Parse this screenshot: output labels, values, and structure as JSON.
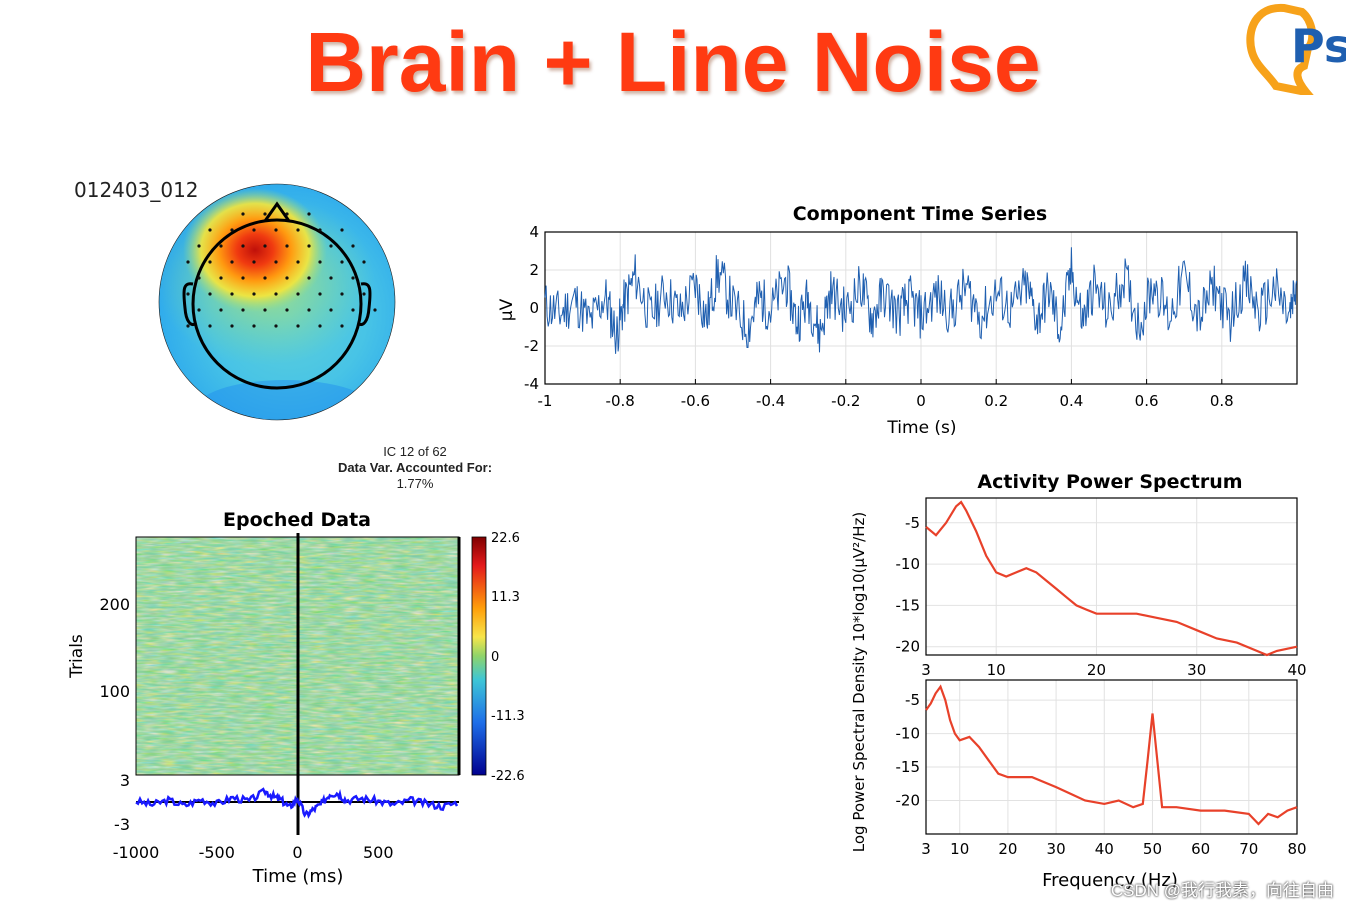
{
  "slide": {
    "title": "Brain + Line Noise",
    "component_id": "012403_012",
    "ic_info": [
      "IC 12 of 62",
      "Data Var. Accounted For:",
      "1.77%"
    ],
    "watermark": "CSDN @我行我素，向往自由"
  },
  "colors": {
    "title": "#ff3a12",
    "trace": "#1f5fb0",
    "spectrum": "#e8412a",
    "erp": "#1a1aff"
  },
  "chart_data": [
    {
      "type": "heatmap",
      "name": "scalp-map",
      "colormap": "jet",
      "hotspot": "front-left",
      "electrodes": 62
    },
    {
      "type": "line",
      "title": "Component Time Series",
      "xlabel": "Time (s)",
      "ylabel": "μV",
      "xlim": [
        -1,
        1
      ],
      "ylim": [
        -4,
        4
      ],
      "xticks": [
        -1,
        -0.8,
        -0.6,
        -0.4,
        -0.2,
        0,
        0.2,
        0.4,
        0.6,
        0.8
      ],
      "yticks": [
        4,
        2,
        0,
        -2,
        -4
      ],
      "grid": true,
      "points": [
        [
          -1.0,
          0.3
        ],
        [
          -0.96,
          -0.6
        ],
        [
          -0.92,
          0.8
        ],
        [
          -0.88,
          -1.4
        ],
        [
          -0.84,
          1.2
        ],
        [
          -0.81,
          -2.6
        ],
        [
          -0.79,
          0.4
        ],
        [
          -0.76,
          3.1
        ],
        [
          -0.72,
          -0.8
        ],
        [
          -0.68,
          1.6
        ],
        [
          -0.64,
          -0.5
        ],
        [
          -0.6,
          2.3
        ],
        [
          -0.57,
          -1.1
        ],
        [
          -0.54,
          3.5
        ],
        [
          -0.5,
          0.2
        ],
        [
          -0.46,
          -1.9
        ],
        [
          -0.43,
          1.1
        ],
        [
          -0.4,
          -0.3
        ],
        [
          -0.36,
          2.6
        ],
        [
          -0.33,
          -1.4
        ],
        [
          -0.3,
          1.0
        ],
        [
          -0.27,
          -2.5
        ],
        [
          -0.24,
          1.6
        ],
        [
          -0.2,
          -0.4
        ],
        [
          -0.16,
          2.2
        ],
        [
          -0.13,
          -1.0
        ],
        [
          -0.1,
          1.4
        ],
        [
          -0.06,
          -0.6
        ],
        [
          -0.03,
          0.9
        ],
        [
          0.0,
          -0.8
        ],
        [
          0.04,
          1.3
        ],
        [
          0.08,
          -0.4
        ],
        [
          0.12,
          2.0
        ],
        [
          0.16,
          -0.9
        ],
        [
          0.2,
          1.5
        ],
        [
          0.24,
          -0.2
        ],
        [
          0.28,
          2.1
        ],
        [
          0.31,
          -1.1
        ],
        [
          0.34,
          1.7
        ],
        [
          0.37,
          -2.1
        ],
        [
          0.4,
          3.6
        ],
        [
          0.43,
          -1.3
        ],
        [
          0.46,
          2.1
        ],
        [
          0.5,
          -0.6
        ],
        [
          0.54,
          3.1
        ],
        [
          0.58,
          -1.5
        ],
        [
          0.62,
          2.5
        ],
        [
          0.66,
          -0.9
        ],
        [
          0.7,
          3.1
        ],
        [
          0.74,
          -1.1
        ],
        [
          0.78,
          2.2
        ],
        [
          0.82,
          -1.2
        ],
        [
          0.86,
          2.6
        ],
        [
          0.9,
          -0.5
        ],
        [
          0.94,
          1.9
        ],
        [
          0.98,
          -1.0
        ],
        [
          1.0,
          2.1
        ]
      ]
    },
    {
      "type": "heatmap",
      "title": "Epoched Data",
      "xlabel": "Time (ms)",
      "ylabel": "Trials",
      "xlim": [
        -1000,
        1000
      ],
      "xticks": [
        -1000,
        -500,
        0,
        500
      ],
      "yticks": [
        100,
        200
      ],
      "colorbar_ticks": [
        "22.6",
        "11.3",
        "0",
        "-11.3",
        "-22.6"
      ],
      "erp_yticks": [
        "3",
        "-3"
      ],
      "erp": [
        [
          -1000,
          0.1
        ],
        [
          -900,
          -0.3
        ],
        [
          -800,
          0.2
        ],
        [
          -700,
          -0.4
        ],
        [
          -600,
          0.3
        ],
        [
          -500,
          -0.2
        ],
        [
          -400,
          0.5
        ],
        [
          -300,
          0.1
        ],
        [
          -200,
          1.2
        ],
        [
          -150,
          0.6
        ],
        [
          -100,
          0.2
        ],
        [
          -50,
          -0.6
        ],
        [
          0,
          0.4
        ],
        [
          50,
          -1.5
        ],
        [
          100,
          -0.8
        ],
        [
          150,
          -0.2
        ],
        [
          200,
          0.9
        ],
        [
          250,
          1.0
        ],
        [
          300,
          0.2
        ],
        [
          400,
          0.4
        ],
        [
          500,
          0.1
        ],
        [
          600,
          -0.3
        ],
        [
          700,
          0.2
        ],
        [
          800,
          -0.2
        ],
        [
          900,
          -0.5
        ],
        [
          1000,
          0.0
        ]
      ]
    },
    {
      "type": "line",
      "title": "Activity Power Spectrum",
      "ylabel": "Log Power Spectral Density 10*log10(μV²/Hz)",
      "xlabel": "Frequency (Hz)",
      "panels": [
        {
          "xlim": [
            3,
            40
          ],
          "ylim": [
            -21,
            -2
          ],
          "xticks": [
            3,
            10,
            20,
            30,
            40
          ],
          "yticks": [
            -5,
            -10,
            -15,
            -20
          ],
          "points": [
            [
              3,
              -5.5
            ],
            [
              4,
              -6.5
            ],
            [
              5,
              -5
            ],
            [
              6,
              -3
            ],
            [
              6.5,
              -2.5
            ],
            [
              7,
              -3.5
            ],
            [
              8,
              -6
            ],
            [
              9,
              -9
            ],
            [
              10,
              -11
            ],
            [
              11,
              -11.5
            ],
            [
              12,
              -11
            ],
            [
              13,
              -10.5
            ],
            [
              14,
              -11
            ],
            [
              15,
              -12
            ],
            [
              16,
              -13
            ],
            [
              17,
              -14
            ],
            [
              18,
              -15
            ],
            [
              19,
              -15.5
            ],
            [
              20,
              -16
            ],
            [
              22,
              -16
            ],
            [
              24,
              -16
            ],
            [
              26,
              -16.5
            ],
            [
              28,
              -17
            ],
            [
              30,
              -18
            ],
            [
              32,
              -19
            ],
            [
              34,
              -19.5
            ],
            [
              36,
              -20.5
            ],
            [
              37,
              -21
            ],
            [
              38,
              -20.5
            ],
            [
              40,
              -20
            ]
          ]
        },
        {
          "xlim": [
            3,
            80
          ],
          "ylim": [
            -25,
            -2
          ],
          "xticks": [
            3,
            10,
            20,
            30,
            40,
            50,
            60,
            70,
            80
          ],
          "yticks": [
            -5,
            -10,
            -15,
            -20
          ],
          "points": [
            [
              3,
              -6.5
            ],
            [
              4,
              -5.5
            ],
            [
              5,
              -4
            ],
            [
              6,
              -3
            ],
            [
              7,
              -5
            ],
            [
              8,
              -8
            ],
            [
              9,
              -10
            ],
            [
              10,
              -11
            ],
            [
              12,
              -10.5
            ],
            [
              14,
              -12
            ],
            [
              16,
              -14
            ],
            [
              18,
              -16
            ],
            [
              20,
              -16.5
            ],
            [
              25,
              -16.5
            ],
            [
              30,
              -18
            ],
            [
              33,
              -19
            ],
            [
              36,
              -20
            ],
            [
              40,
              -20.5
            ],
            [
              43,
              -20
            ],
            [
              46,
              -21
            ],
            [
              48,
              -20.5
            ],
            [
              49,
              -14
            ],
            [
              50,
              -7
            ],
            [
              51,
              -14
            ],
            [
              52,
              -21
            ],
            [
              55,
              -21
            ],
            [
              60,
              -21.5
            ],
            [
              65,
              -21.5
            ],
            [
              70,
              -22
            ],
            [
              72,
              -23.5
            ],
            [
              74,
              -22
            ],
            [
              76,
              -22.5
            ],
            [
              78,
              -21.5
            ],
            [
              80,
              -21
            ]
          ]
        }
      ]
    }
  ]
}
